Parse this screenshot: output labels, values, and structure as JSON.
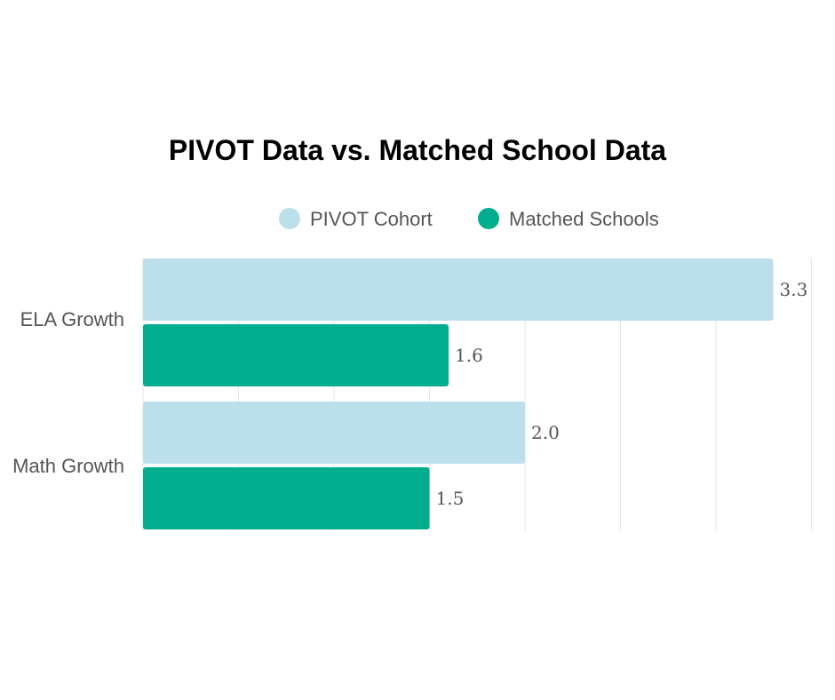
{
  "chart_data": {
    "type": "bar",
    "orientation": "horizontal",
    "title": "PIVOT Data vs. Matched School Data",
    "categories": [
      "ELA Growth",
      "Math Growth"
    ],
    "series": [
      {
        "name": "PIVOT Cohort",
        "color": "#bcdfec",
        "values": [
          3.3,
          2.0
        ],
        "labels": [
          "3.3",
          "2.0"
        ]
      },
      {
        "name": "Matched Schools",
        "color": "#00ae8e",
        "values": [
          1.6,
          1.5
        ],
        "labels": [
          "1.6",
          "1.5"
        ]
      }
    ],
    "xlim": [
      0,
      3.5
    ],
    "grid": true,
    "legend_position": "top"
  }
}
